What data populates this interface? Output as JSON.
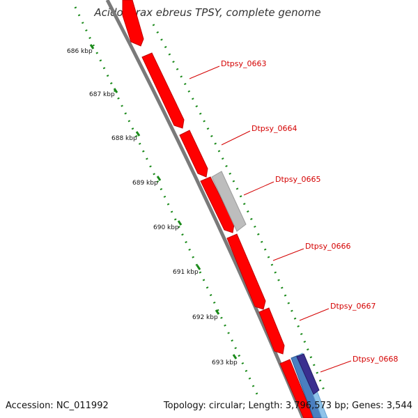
{
  "header": {
    "title": "Acidovorax ebreus TPSY, complete genome"
  },
  "footer": {
    "accession": "Accession: NC_011992",
    "summary": "Topology: circular; Length: 3,796,573 bp; Genes: 3,544"
  },
  "ruler": {
    "ticks": [
      "686 kbp",
      "687 kbp",
      "688 kbp",
      "689 kbp",
      "690 kbp",
      "691 kbp",
      "692 kbp",
      "693 kbp"
    ]
  },
  "genes": [
    {
      "label": "Dtpsy_0663",
      "color": "#ff0000"
    },
    {
      "label": "Dtpsy_0664",
      "color": "#ff0000"
    },
    {
      "label": "Dtpsy_0665",
      "color": "#bdbdbd"
    },
    {
      "label": "Dtpsy_0666",
      "color": "#ff0000"
    },
    {
      "label": "Dtpsy_0667",
      "color": "#ff0000"
    },
    {
      "label": "Dtpsy_0668",
      "color": "#ff0000"
    }
  ],
  "colors": {
    "backbone": "#7a7a7a",
    "cds": "#ff0000",
    "gray_feature": "#bdbdbd",
    "dotted_track": "#1a8a1a",
    "label_line": "#d40000",
    "blue_feature": "#4a7fc0",
    "light_blue_feature": "#8fc3ea",
    "purple_feature": "#3a2f8f"
  }
}
